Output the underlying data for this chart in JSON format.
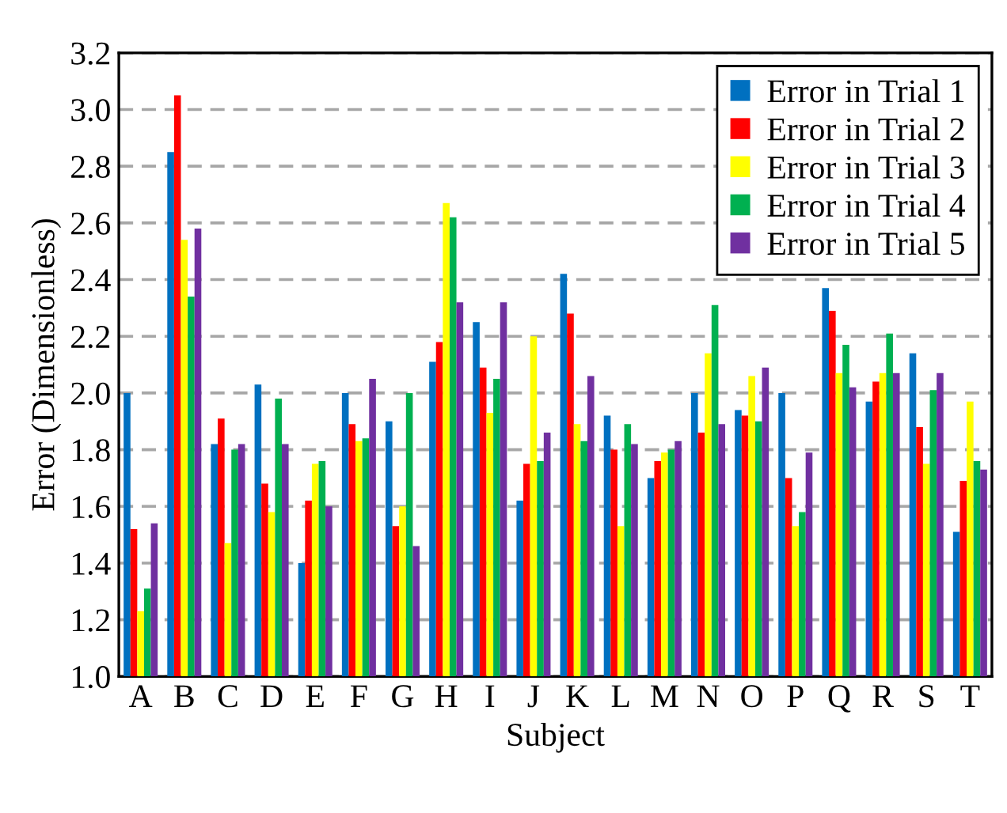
{
  "chart_data": {
    "type": "bar",
    "xlabel": "Subject",
    "ylabel": "Error (Dimensionless)",
    "categories": [
      "A",
      "B",
      "C",
      "D",
      "E",
      "F",
      "G",
      "H",
      "I",
      "J",
      "K",
      "L",
      "M",
      "N",
      "O",
      "P",
      "Q",
      "R",
      "S",
      "T"
    ],
    "series": [
      {
        "name": "Error in Trial 1",
        "color": "#0070c0",
        "values": [
          2.0,
          2.85,
          1.82,
          2.03,
          1.4,
          2.0,
          1.9,
          2.11,
          2.25,
          1.62,
          2.42,
          1.92,
          1.7,
          2.0,
          1.94,
          2.0,
          2.37,
          1.97,
          2.14,
          1.51
        ]
      },
      {
        "name": "Error in Trial 2",
        "color": "#ff0000",
        "values": [
          1.52,
          3.05,
          1.91,
          1.68,
          1.62,
          1.89,
          1.53,
          2.18,
          2.09,
          1.75,
          2.28,
          1.8,
          1.76,
          1.86,
          1.92,
          1.7,
          2.29,
          2.04,
          1.88,
          1.69
        ]
      },
      {
        "name": "Error in Trial 3",
        "color": "#ffff00",
        "values": [
          1.23,
          2.54,
          1.47,
          1.58,
          1.75,
          1.83,
          1.6,
          2.67,
          1.93,
          2.2,
          1.89,
          1.53,
          1.79,
          2.14,
          2.06,
          1.53,
          2.07,
          2.07,
          1.75,
          1.97
        ]
      },
      {
        "name": "Error in Trial 4",
        "color": "#00b050",
        "values": [
          1.31,
          2.34,
          1.8,
          1.98,
          1.76,
          1.84,
          2.0,
          2.62,
          2.05,
          1.76,
          1.83,
          1.89,
          1.8,
          2.31,
          1.9,
          1.58,
          2.17,
          2.21,
          2.01,
          1.76
        ]
      },
      {
        "name": "Error in Trial 5",
        "color": "#7030a0",
        "values": [
          1.54,
          2.58,
          1.82,
          1.82,
          1.6,
          2.05,
          1.46,
          2.32,
          2.32,
          1.86,
          2.06,
          1.82,
          1.83,
          1.89,
          2.09,
          1.79,
          2.02,
          2.07,
          2.07,
          1.73
        ]
      }
    ],
    "ylim": [
      1.0,
      3.2
    ],
    "yticks": [
      {
        "value": 1.0,
        "label": "1.0"
      },
      1.2,
      1.4,
      1.6,
      1.8,
      {
        "value": 2.0,
        "label": "2.0"
      },
      2.2,
      2.4,
      2.6,
      2.8,
      {
        "value": 3.0,
        "label": "3.0"
      },
      3.2
    ],
    "grid": "y",
    "legend": "top right"
  }
}
